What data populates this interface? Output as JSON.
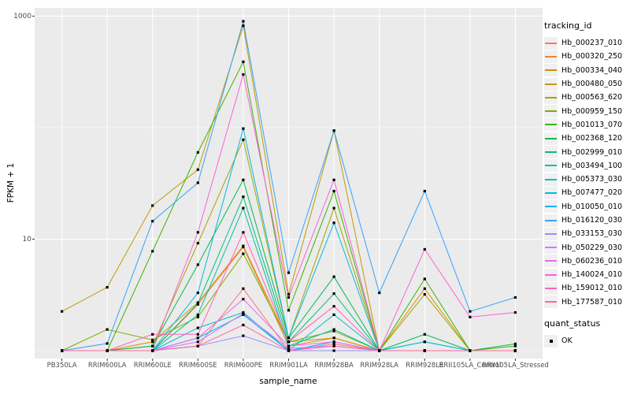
{
  "chart_data": {
    "type": "line",
    "title": "",
    "xlabel": "sample_name",
    "ylabel": "FPKM + 1",
    "y_scale": "log10",
    "ylim": [
      0.9,
      1200
    ],
    "y_ticks": [
      {
        "label": "10",
        "value": 10
      },
      {
        "label": "1000",
        "value": 1000
      }
    ],
    "y_minor_values": [
      1,
      100
    ],
    "grid": "on",
    "legend_position": "right",
    "legend_title": "tracking_id",
    "marker": "black-square",
    "x_categories": [
      "PB350LA",
      "RRIM600LA",
      "RRIM600LE",
      "RRIM600SE",
      "RRIM600PE",
      "RRIM901LA",
      "RRIM928BA",
      "RRIM928LA",
      "RRIM928LE",
      "RRII105LA_Control",
      "RRII105LA_Stressed"
    ],
    "series": [
      {
        "name": "Hb_000237_010",
        "color": "#F8766D",
        "values": [
          1,
          1,
          1,
          1.1,
          3.6,
          1,
          1.15,
          1,
          1,
          1,
          1
        ]
      },
      {
        "name": "Hb_000320_250",
        "color": "#EA8331",
        "values": [
          1,
          1,
          1,
          2.6,
          8.5,
          1.1,
          1.3,
          1,
          1,
          1,
          1
        ]
      },
      {
        "name": "Hb_000334_040",
        "color": "#D89000",
        "values": [
          1,
          1,
          1.2,
          2.7,
          8.7,
          1.2,
          1.3,
          1,
          3.6,
          1,
          1
        ]
      },
      {
        "name": "Hb_000480_050",
        "color": "#C09B00",
        "values": [
          2.25,
          3.7,
          20,
          42,
          820,
          3.2,
          94,
          1,
          1,
          1,
          1
        ]
      },
      {
        "name": "Hb_000563_620",
        "color": "#A3A500",
        "values": [
          1,
          1,
          1.1,
          9.2,
          78,
          1.3,
          19,
          1,
          3.2,
          1,
          1
        ]
      },
      {
        "name": "Hb_000959_150",
        "color": "#7CAE00",
        "values": [
          1,
          1.55,
          1.25,
          2.0,
          7.4,
          1.2,
          1.5,
          1,
          1,
          1,
          1
        ]
      },
      {
        "name": "Hb_001013_070",
        "color": "#39B600",
        "values": [
          1,
          1,
          7.8,
          60,
          390,
          2.3,
          27,
          1,
          4.4,
          1,
          1.1
        ]
      },
      {
        "name": "Hb_002368_120",
        "color": "#00BB4E",
        "values": [
          1,
          1,
          1.1,
          5.9,
          34,
          1.3,
          4.6,
          1,
          1.4,
          1,
          1.15
        ]
      },
      {
        "name": "Hb_002999_010",
        "color": "#00BF7D",
        "values": [
          1,
          1,
          1,
          2.65,
          24,
          1.2,
          3.25,
          1,
          1,
          1,
          1
        ]
      },
      {
        "name": "Hb_003494_100",
        "color": "#00C1A3",
        "values": [
          1,
          1,
          1,
          2.1,
          19,
          1.1,
          1.55,
          1,
          1,
          1,
          1
        ]
      },
      {
        "name": "Hb_005373_030",
        "color": "#00BFC4",
        "values": [
          1,
          1,
          1,
          1.6,
          2.2,
          1,
          2.1,
          1,
          1.2,
          1,
          1
        ]
      },
      {
        "name": "Hb_007477_020",
        "color": "#00BAE0",
        "values": [
          1,
          1,
          1,
          3.3,
          98,
          1.3,
          14,
          1,
          1.2,
          1,
          1
        ]
      },
      {
        "name": "Hb_010050_010",
        "color": "#00B0F6",
        "values": [
          1,
          1,
          1,
          1.3,
          2.1,
          1,
          1.2,
          1,
          1,
          1,
          1
        ]
      },
      {
        "name": "Hb_016120_030",
        "color": "#35A2FF",
        "values": [
          1,
          1.16,
          14.5,
          32,
          900,
          5.0,
          94,
          3.3,
          27,
          2.25,
          3.0
        ]
      },
      {
        "name": "Hb_033153_030",
        "color": "#9590FF",
        "values": [
          1,
          1,
          1,
          1.1,
          1.36,
          1,
          1,
          1,
          1,
          1,
          1
        ]
      },
      {
        "name": "Hb_050229_030",
        "color": "#C77CFF",
        "values": [
          1,
          1,
          1,
          1.2,
          2.15,
          1.05,
          1.1,
          1,
          1,
          1,
          1
        ]
      },
      {
        "name": "Hb_060236_010",
        "color": "#E76BF3",
        "values": [
          1,
          1,
          1,
          1.3,
          2.9,
          1.1,
          1.2,
          1,
          1,
          1,
          1
        ]
      },
      {
        "name": "Hb_140024_010",
        "color": "#FA62DB",
        "values": [
          1,
          1,
          1,
          11.5,
          300,
          3.0,
          34,
          1,
          8.1,
          2.0,
          2.2
        ]
      },
      {
        "name": "Hb_159012_010",
        "color": "#FF62BC",
        "values": [
          1,
          1,
          1.4,
          1.4,
          11.5,
          1.2,
          2.5,
          1,
          1,
          1,
          1
        ]
      },
      {
        "name": "Hb_177587_010",
        "color": "#FF6A98",
        "values": [
          1,
          1,
          1,
          1.1,
          1.7,
          1,
          1.1,
          1,
          1,
          1,
          1
        ]
      }
    ],
    "quant_legend": {
      "title": "quant_status",
      "items": [
        {
          "label": "OK",
          "marker": "black-square"
        }
      ]
    },
    "colors": {
      "panel_background": "#EBEBEB",
      "gridline": "#FFFFFF",
      "tick_text": "#4d4d4d",
      "point": "#000000",
      "legend_key_background": "#F0F0F0"
    }
  }
}
